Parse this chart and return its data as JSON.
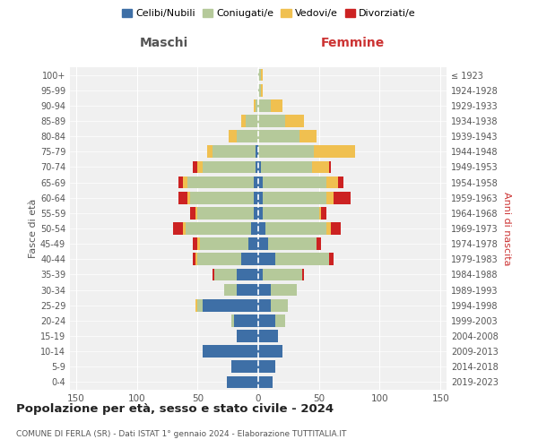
{
  "age_groups": [
    "0-4",
    "5-9",
    "10-14",
    "15-19",
    "20-24",
    "25-29",
    "30-34",
    "35-39",
    "40-44",
    "45-49",
    "50-54",
    "55-59",
    "60-64",
    "65-69",
    "70-74",
    "75-79",
    "80-84",
    "85-89",
    "90-94",
    "95-99",
    "100+"
  ],
  "birth_years": [
    "2019-2023",
    "2014-2018",
    "2009-2013",
    "2004-2008",
    "1999-2003",
    "1994-1998",
    "1989-1993",
    "1984-1988",
    "1979-1983",
    "1974-1978",
    "1969-1973",
    "1964-1968",
    "1959-1963",
    "1954-1958",
    "1949-1953",
    "1944-1948",
    "1939-1943",
    "1934-1938",
    "1929-1933",
    "1924-1928",
    "≤ 1923"
  ],
  "colors": {
    "celibi": "#3e6fa6",
    "coniugati": "#b5c99a",
    "vedovi": "#f0c050",
    "divorziati": "#cc2222"
  },
  "males": {
    "celibi": [
      26,
      22,
      46,
      18,
      20,
      46,
      18,
      18,
      14,
      8,
      6,
      4,
      4,
      4,
      2,
      2,
      0,
      0,
      0,
      0,
      0
    ],
    "coniugati": [
      0,
      0,
      0,
      0,
      2,
      4,
      10,
      18,
      36,
      40,
      54,
      46,
      52,
      54,
      44,
      36,
      18,
      10,
      2,
      0,
      0
    ],
    "vedovi": [
      0,
      0,
      0,
      0,
      0,
      2,
      0,
      0,
      2,
      2,
      2,
      2,
      2,
      4,
      4,
      4,
      6,
      4,
      2,
      0,
      0
    ],
    "divorziati": [
      0,
      0,
      0,
      0,
      0,
      0,
      0,
      2,
      2,
      4,
      8,
      4,
      8,
      4,
      4,
      0,
      0,
      0,
      0,
      0,
      0
    ]
  },
  "females": {
    "celibi": [
      12,
      14,
      20,
      16,
      14,
      10,
      10,
      4,
      14,
      8,
      6,
      4,
      4,
      4,
      2,
      0,
      0,
      0,
      0,
      0,
      0
    ],
    "coniugati": [
      0,
      0,
      0,
      0,
      8,
      14,
      22,
      32,
      44,
      40,
      50,
      46,
      52,
      52,
      42,
      46,
      34,
      22,
      10,
      2,
      2
    ],
    "vedovi": [
      0,
      0,
      0,
      0,
      0,
      0,
      0,
      0,
      0,
      0,
      4,
      2,
      6,
      10,
      14,
      34,
      14,
      16,
      10,
      2,
      2
    ],
    "divorziati": [
      0,
      0,
      0,
      0,
      0,
      0,
      0,
      2,
      4,
      4,
      8,
      4,
      14,
      4,
      2,
      0,
      0,
      0,
      0,
      0,
      0
    ]
  },
  "xlim": 155,
  "xticks": [
    150,
    100,
    50,
    0,
    50,
    100,
    150
  ],
  "title": "Popolazione per età, sesso e stato civile - 2024",
  "subtitle": "COMUNE DI FERLA (SR) - Dati ISTAT 1° gennaio 2024 - Elaborazione TUTTITALIA.IT",
  "xlabel_left": "Maschi",
  "xlabel_right": "Femmine",
  "ylabel_left": "Fasce di età",
  "ylabel_right": "Anni di nascita",
  "legend_labels": [
    "Celibi/Nubili",
    "Coniugati/e",
    "Vedovi/e",
    "Divorziati/e"
  ],
  "bg_color": "#f0f0f0",
  "grid_color": "#cccccc"
}
